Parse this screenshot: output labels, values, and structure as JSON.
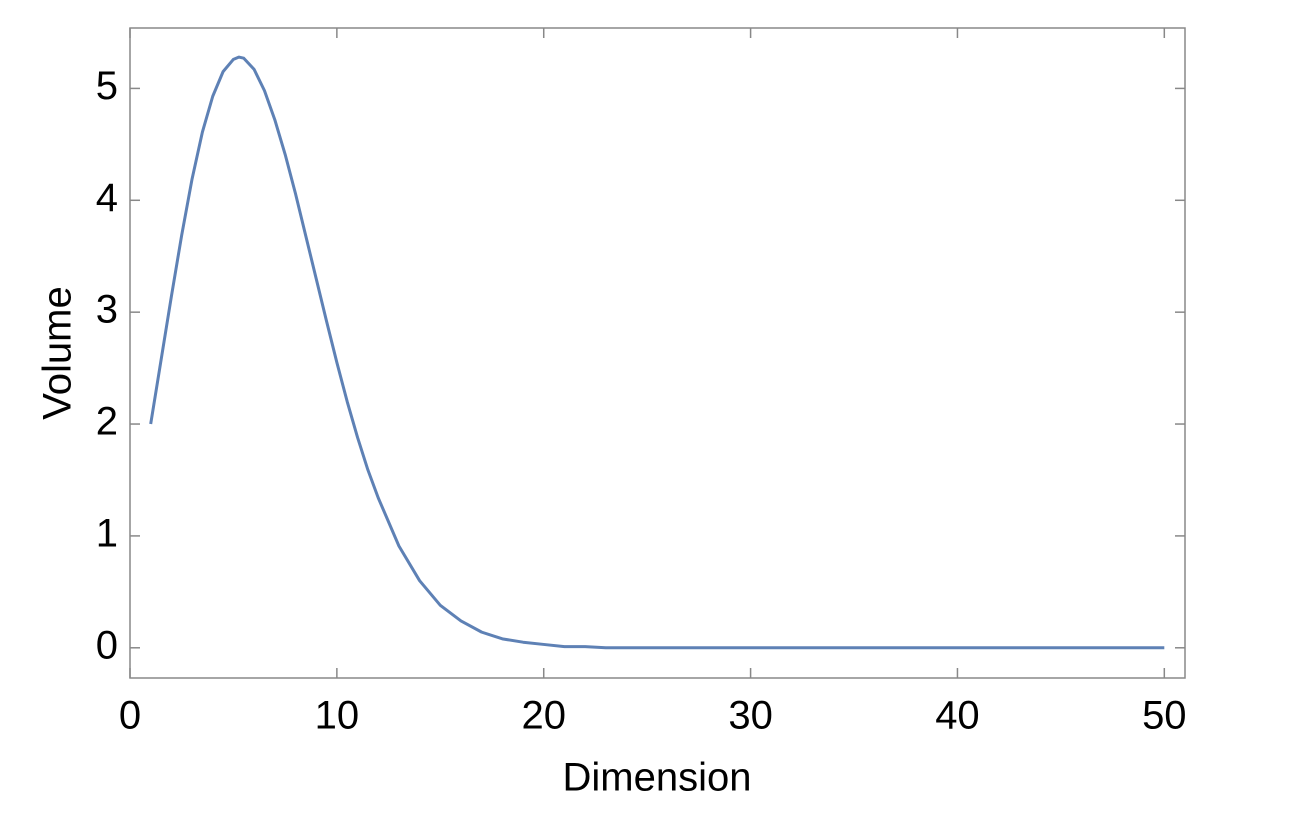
{
  "chart_data": {
    "type": "line",
    "xlabel": "Dimension",
    "ylabel": "Volume",
    "xlim": [
      0,
      51
    ],
    "ylim": [
      -0.27,
      5.54
    ],
    "xticks": [
      0,
      10,
      20,
      30,
      40,
      50
    ],
    "yticks": [
      0,
      1,
      2,
      3,
      4,
      5
    ],
    "frame": true,
    "grid": false,
    "series": [
      {
        "color": "#5e81b5",
        "x": [
          1,
          1.5,
          2,
          2.5,
          3,
          3.5,
          4,
          4.5,
          5,
          5.26,
          5.5,
          6,
          6.5,
          7,
          7.5,
          8,
          8.5,
          9,
          9.5,
          10,
          10.5,
          11,
          11.5,
          12,
          13,
          14,
          15,
          16,
          17,
          18,
          19,
          20,
          21,
          22,
          23,
          24,
          25,
          26,
          27,
          28,
          29,
          30,
          31,
          32,
          33,
          34,
          35,
          36,
          37,
          38,
          39,
          40,
          41,
          42,
          43,
          44,
          45,
          46,
          47,
          48,
          49,
          50
        ],
        "values": [
          2,
          2.57,
          3.14,
          3.69,
          4.19,
          4.61,
          4.93,
          5.15,
          5.26,
          5.28,
          5.27,
          5.17,
          4.98,
          4.72,
          4.41,
          4.06,
          3.68,
          3.3,
          2.92,
          2.55,
          2.2,
          1.88,
          1.59,
          1.34,
          0.91,
          0.6,
          0.38,
          0.24,
          0.14,
          0.08,
          0.05,
          0.03,
          0.01,
          0.01,
          0,
          0,
          0,
          0,
          0,
          0,
          0,
          0,
          0,
          0,
          0,
          0,
          0,
          0,
          0,
          0,
          0,
          0,
          0,
          0,
          0,
          0,
          0,
          0,
          0,
          0,
          0,
          0
        ]
      }
    ]
  }
}
